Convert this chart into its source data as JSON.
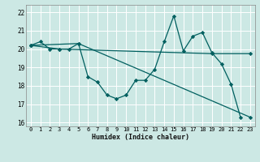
{
  "xlabel": "Humidex (Indice chaleur)",
  "bg_color": "#cce8e4",
  "grid_color": "#ffffff",
  "line_color": "#005f5f",
  "xlim": [
    -0.5,
    23.5
  ],
  "ylim": [
    15.8,
    22.4
  ],
  "yticks": [
    16,
    17,
    18,
    19,
    20,
    21,
    22
  ],
  "xticks": [
    0,
    1,
    2,
    3,
    4,
    5,
    6,
    7,
    8,
    9,
    10,
    11,
    12,
    13,
    14,
    15,
    16,
    17,
    18,
    19,
    20,
    21,
    22,
    23
  ],
  "series1_x": [
    0,
    1,
    2,
    3,
    4,
    5,
    6,
    7,
    8,
    9,
    10,
    11,
    12,
    13,
    14,
    15,
    16,
    17,
    18,
    19,
    20,
    21,
    22,
    23
  ],
  "series1_y": [
    20.2,
    20.4,
    20.0,
    20.0,
    20.0,
    20.3,
    18.5,
    18.2,
    17.5,
    17.3,
    17.5,
    18.3,
    18.3,
    18.9,
    20.4,
    21.8,
    19.9,
    20.7,
    20.9,
    19.8,
    19.2,
    18.1,
    16.3,
    null
  ],
  "series2_x": [
    0,
    3,
    19,
    23
  ],
  "series2_y": [
    20.2,
    20.0,
    19.75,
    19.75
  ],
  "series3_x": [
    0,
    5,
    23
  ],
  "series3_y": [
    20.2,
    20.3,
    16.3
  ]
}
